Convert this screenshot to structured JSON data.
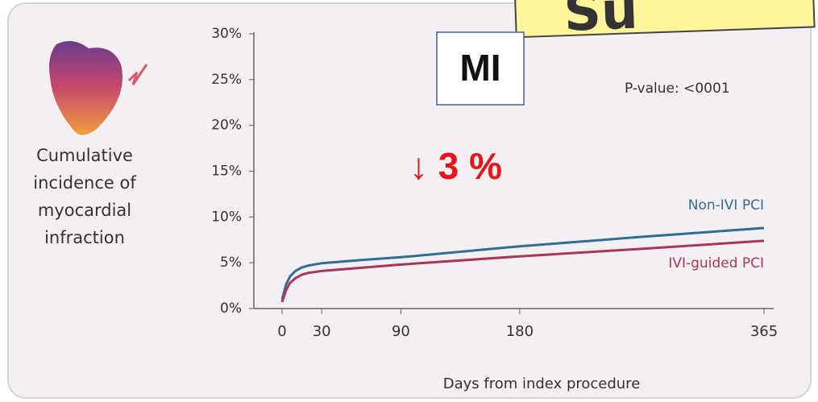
{
  "chart_data": {
    "type": "line",
    "ylabel": "Cumulative incidence of myocardial infraction",
    "xlabel": "Days from index procedure",
    "x": [
      0,
      3,
      6,
      10,
      15,
      20,
      30,
      60,
      90,
      180,
      270,
      365
    ],
    "series": [
      {
        "name": "Non-IVI PCI",
        "color": "#2f6f93",
        "values": [
          1.0,
          2.6,
          3.5,
          4.1,
          4.5,
          4.7,
          4.95,
          5.3,
          5.6,
          6.8,
          7.8,
          8.8
        ]
      },
      {
        "name": "IVI-guided PCI",
        "color": "#a8385a",
        "values": [
          0.7,
          2.0,
          2.8,
          3.3,
          3.7,
          3.9,
          4.1,
          4.45,
          4.8,
          5.7,
          6.5,
          7.4
        ]
      }
    ],
    "xlim": [
      0,
      365
    ],
    "xticks": [
      0,
      30,
      90,
      180,
      365
    ],
    "ylim": [
      0,
      30
    ],
    "yticks": [
      {
        "value": 0,
        "label": "0%"
      },
      {
        "value": 5,
        "label": "5%"
      },
      {
        "value": 10,
        "label": "10%"
      },
      {
        "value": 15,
        "label": "15%"
      },
      {
        "value": 20,
        "label": "20%"
      },
      {
        "value": 25,
        "label": "25%"
      },
      {
        "value": 30,
        "label": "30%"
      }
    ],
    "annotations": {
      "box_label": "MI",
      "change": "↓ 3 %",
      "p_value": "P-value: <0001",
      "banner": "Su"
    }
  }
}
